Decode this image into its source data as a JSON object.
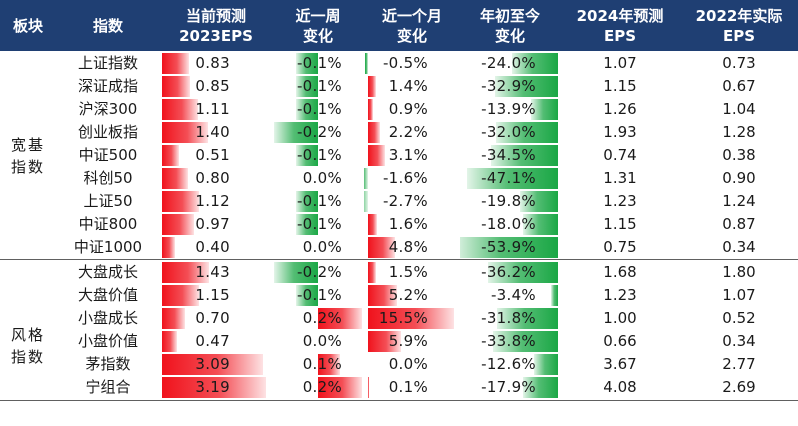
{
  "header": {
    "c0": "板块",
    "c1": "指数",
    "c2": [
      "当前预测",
      "2023EPS"
    ],
    "c3": [
      "近一周",
      "变化"
    ],
    "c4": [
      "近一个月",
      "变化"
    ],
    "c5": [
      "年初至今",
      "变化"
    ],
    "c6": [
      "2024年预测",
      "EPS"
    ],
    "c7": [
      "2022年实际",
      "EPS"
    ]
  },
  "groups": [
    {
      "label": [
        "宽基",
        "指数"
      ],
      "rows": [
        0,
        1,
        2,
        3,
        4,
        5,
        6,
        7,
        8
      ]
    },
    {
      "label": [
        "风格",
        "指数"
      ],
      "rows": [
        9,
        10,
        11,
        12,
        13,
        14
      ]
    }
  ],
  "colors": {
    "header_bg": "#1f3f73",
    "header_text": "#ffffff",
    "bar_red": "#f0121c",
    "bar_green": "#1aa745"
  },
  "bar_scales": {
    "eps2023_max": 3.19,
    "week_max_abs": 0.2,
    "month_max_abs": 15.5,
    "ytd_max_abs": 53.9
  },
  "rows": [
    {
      "name": "上证指数",
      "eps2023": "0.83",
      "eps2023_v": 0.83,
      "week": "-0.1%",
      "week_v": -0.1,
      "month": "-0.5%",
      "month_v": -0.5,
      "ytd": "-24.0%",
      "ytd_v": -24.0,
      "eps2024": "1.07",
      "eps2022": "0.73"
    },
    {
      "name": "深证成指",
      "eps2023": "0.85",
      "eps2023_v": 0.85,
      "week": "-0.1%",
      "week_v": -0.1,
      "month": "1.4%",
      "month_v": 1.4,
      "ytd": "-32.9%",
      "ytd_v": -32.9,
      "eps2024": "1.15",
      "eps2022": "0.67"
    },
    {
      "name": "沪深300",
      "eps2023": "1.11",
      "eps2023_v": 1.11,
      "week": "-0.1%",
      "week_v": -0.1,
      "month": "0.9%",
      "month_v": 0.9,
      "ytd": "-13.9%",
      "ytd_v": -13.9,
      "eps2024": "1.26",
      "eps2022": "1.04"
    },
    {
      "name": "创业板指",
      "eps2023": "1.40",
      "eps2023_v": 1.4,
      "week": "-0.2%",
      "week_v": -0.2,
      "month": "2.2%",
      "month_v": 2.2,
      "ytd": "-32.0%",
      "ytd_v": -32.0,
      "eps2024": "1.93",
      "eps2022": "1.28"
    },
    {
      "name": "中证500",
      "eps2023": "0.51",
      "eps2023_v": 0.51,
      "week": "-0.1%",
      "week_v": -0.1,
      "month": "3.1%",
      "month_v": 3.1,
      "ytd": "-34.5%",
      "ytd_v": -34.5,
      "eps2024": "0.74",
      "eps2022": "0.38"
    },
    {
      "name": "科创50",
      "eps2023": "0.80",
      "eps2023_v": 0.8,
      "week": "0.0%",
      "week_v": 0.0,
      "month": "-1.6%",
      "month_v": -1.6,
      "ytd": "-47.1%",
      "ytd_v": -47.1,
      "eps2024": "1.31",
      "eps2022": "0.90"
    },
    {
      "name": "上证50",
      "eps2023": "1.12",
      "eps2023_v": 1.12,
      "week": "-0.1%",
      "week_v": -0.1,
      "month": "-2.7%",
      "month_v": -2.7,
      "ytd": "-19.8%",
      "ytd_v": -19.8,
      "eps2024": "1.23",
      "eps2022": "1.24"
    },
    {
      "name": "中证800",
      "eps2023": "0.97",
      "eps2023_v": 0.97,
      "week": "-0.1%",
      "week_v": -0.1,
      "month": "1.6%",
      "month_v": 1.6,
      "ytd": "-18.0%",
      "ytd_v": -18.0,
      "eps2024": "1.15",
      "eps2022": "0.87"
    },
    {
      "name": "中证1000",
      "eps2023": "0.40",
      "eps2023_v": 0.4,
      "week": "0.0%",
      "week_v": 0.0,
      "month": "4.8%",
      "month_v": 4.8,
      "ytd": "-53.9%",
      "ytd_v": -53.9,
      "eps2024": "0.75",
      "eps2022": "0.34"
    },
    {
      "name": "大盘成长",
      "eps2023": "1.43",
      "eps2023_v": 1.43,
      "week": "-0.2%",
      "week_v": -0.2,
      "month": "1.5%",
      "month_v": 1.5,
      "ytd": "-36.2%",
      "ytd_v": -36.2,
      "eps2024": "1.68",
      "eps2022": "1.80"
    },
    {
      "name": "大盘价值",
      "eps2023": "1.15",
      "eps2023_v": 1.15,
      "week": "-0.1%",
      "week_v": -0.1,
      "month": "5.2%",
      "month_v": 5.2,
      "ytd": "-3.4%",
      "ytd_v": -3.4,
      "eps2024": "1.23",
      "eps2022": "1.07"
    },
    {
      "name": "小盘成长",
      "eps2023": "0.70",
      "eps2023_v": 0.7,
      "week": "0.2%",
      "week_v": 0.2,
      "month": "15.5%",
      "month_v": 15.5,
      "ytd": "-31.8%",
      "ytd_v": -31.8,
      "eps2024": "1.00",
      "eps2022": "0.52"
    },
    {
      "name": "小盘价值",
      "eps2023": "0.47",
      "eps2023_v": 0.47,
      "week": "0.0%",
      "week_v": 0.0,
      "month": "5.9%",
      "month_v": 5.9,
      "ytd": "-33.8%",
      "ytd_v": -33.8,
      "eps2024": "0.66",
      "eps2022": "0.34"
    },
    {
      "name": "茅指数",
      "eps2023": "3.09",
      "eps2023_v": 3.09,
      "week": "0.1%",
      "week_v": 0.1,
      "month": "0.0%",
      "month_v": 0.0,
      "ytd": "-12.6%",
      "ytd_v": -12.6,
      "eps2024": "3.67",
      "eps2022": "2.77"
    },
    {
      "name": "宁组合",
      "eps2023": "3.19",
      "eps2023_v": 3.19,
      "week": "0.2%",
      "week_v": 0.2,
      "month": "0.1%",
      "month_v": 0.1,
      "ytd": "-17.9%",
      "ytd_v": -17.9,
      "eps2024": "4.08",
      "eps2022": "2.69"
    }
  ]
}
